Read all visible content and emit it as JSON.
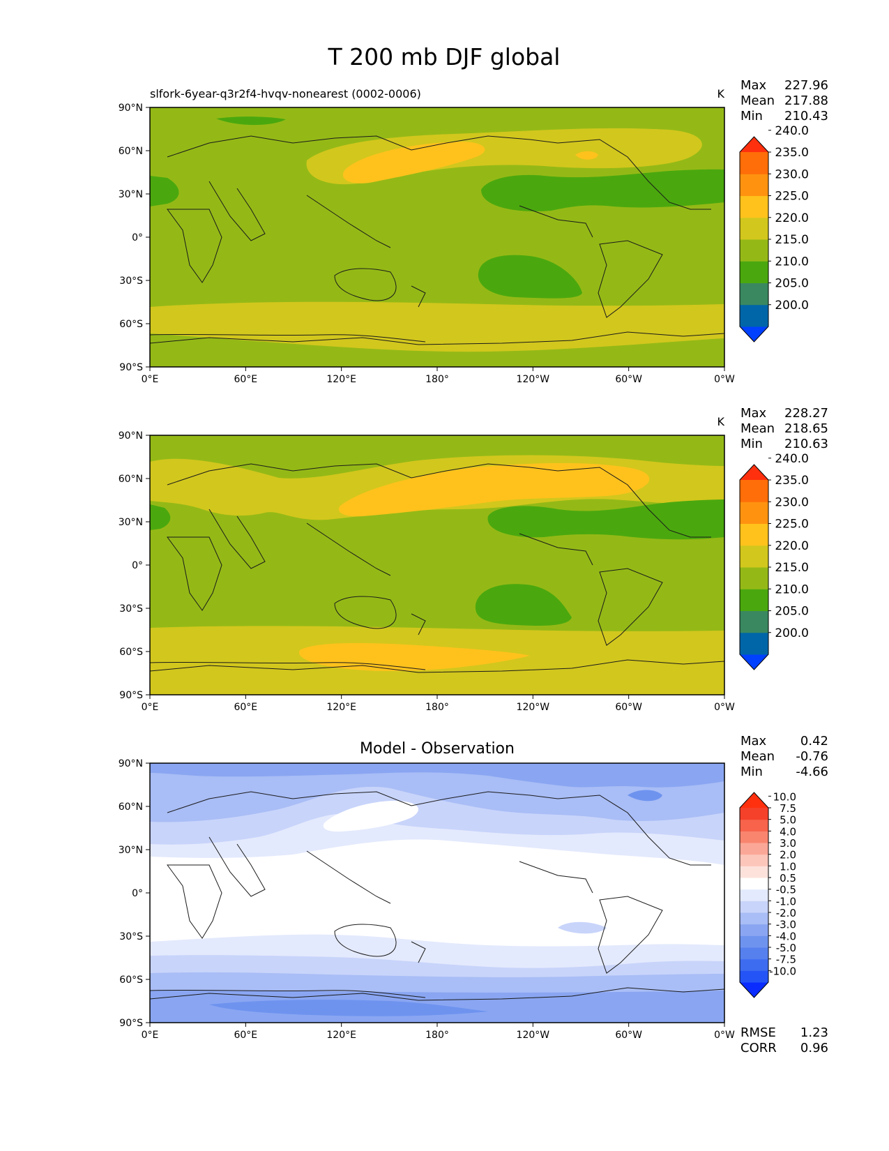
{
  "figure_title": "T 200 mb DJF global",
  "chart_data": [
    {
      "type": "contour_map",
      "title": "slfork-6year-q3r2f4-hvqv-nonearest (0002-0006)",
      "units": "K",
      "stats": {
        "Max": "227.96",
        "Mean": "217.88",
        "Min": "210.43"
      },
      "stat_labels": [
        "Max",
        "Mean",
        "Min"
      ],
      "xticks": [
        "0°E",
        "60°E",
        "120°E",
        "180°",
        "120°W",
        "60°W",
        "0°W"
      ],
      "yticks": [
        "90°N",
        "60°N",
        "30°N",
        "0°",
        "30°S",
        "60°S",
        "90°S"
      ],
      "xlim": [
        0,
        360
      ],
      "ylim": [
        -90,
        90
      ],
      "colorbar": {
        "levels": [
          "200.0",
          "205.0",
          "210.0",
          "215.0",
          "220.0",
          "225.0",
          "230.0",
          "235.0",
          "240.0"
        ],
        "colors": [
          "#0040ff",
          "#0066a8",
          "#3a8860",
          "#4aa80e",
          "#94b916",
          "#d2c71d",
          "#ffc21c",
          "#ff9310",
          "#ff6e08",
          "#ff300e"
        ]
      },
      "field_bands": [
        {
          "label": "210-215",
          "color": "#4aa80e"
        },
        {
          "label": "215-220",
          "color": "#94b916"
        },
        {
          "label": "220-225",
          "color": "#d2c71d"
        },
        {
          "label": "225-230",
          "color": "#ffc21c"
        }
      ]
    },
    {
      "type": "contour_map",
      "title": "",
      "units": "K",
      "stats": {
        "Max": "228.27",
        "Mean": "218.65",
        "Min": "210.63"
      },
      "stat_labels": [
        "Max",
        "Mean",
        "Min"
      ],
      "xticks": [
        "0°E",
        "60°E",
        "120°E",
        "180°",
        "120°W",
        "60°W",
        "0°W"
      ],
      "yticks": [
        "90°N",
        "60°N",
        "30°N",
        "0°",
        "30°S",
        "60°S",
        "90°S"
      ],
      "xlim": [
        0,
        360
      ],
      "ylim": [
        -90,
        90
      ],
      "colorbar": {
        "levels": [
          "200.0",
          "205.0",
          "210.0",
          "215.0",
          "220.0",
          "225.0",
          "230.0",
          "235.0",
          "240.0"
        ],
        "colors": [
          "#0040ff",
          "#0066a8",
          "#3a8860",
          "#4aa80e",
          "#94b916",
          "#d2c71d",
          "#ffc21c",
          "#ff9310",
          "#ff6e08",
          "#ff300e"
        ]
      },
      "field_bands": [
        {
          "label": "210-215",
          "color": "#4aa80e"
        },
        {
          "label": "215-220",
          "color": "#94b916"
        },
        {
          "label": "220-225",
          "color": "#d2c71d"
        },
        {
          "label": "225-230",
          "color": "#ffc21c"
        }
      ]
    },
    {
      "type": "contour_map",
      "title": "Model - Observation",
      "units": "",
      "stats": {
        "Max": "0.42",
        "Mean": "-0.76",
        "Min": "-4.66"
      },
      "stat_labels": [
        "Max",
        "Mean",
        "Min"
      ],
      "xticks": [
        "0°E",
        "60°E",
        "120°E",
        "180°",
        "120°W",
        "60°W",
        "0°W"
      ],
      "yticks": [
        "90°N",
        "60°N",
        "30°N",
        "0°",
        "30°S",
        "60°S",
        "90°S"
      ],
      "xlim": [
        0,
        360
      ],
      "ylim": [
        -90,
        90
      ],
      "colorbar": {
        "levels": [
          "-10.0",
          "-7.5",
          "-5.0",
          "-4.0",
          "-3.0",
          "-2.0",
          "-1.0",
          "-0.5",
          "0.5",
          "1.0",
          "2.0",
          "3.0",
          "4.0",
          "5.0",
          "7.5",
          "10.0"
        ],
        "colors": [
          "#0a2cff",
          "#2454f5",
          "#3e6cf0",
          "#5580ee",
          "#6e93ef",
          "#8aa6f2",
          "#a9bdf6",
          "#c8d4fa",
          "#e4eafd",
          "#ffffff",
          "#fde2dc",
          "#fcc6bb",
          "#fba797",
          "#f9856f",
          "#f7634b",
          "#f5402a",
          "#ff300e"
        ]
      },
      "field_bands": [
        {
          "label": "0.5 to -0.5",
          "color": "#ffffff"
        },
        {
          "label": "-0.5 to -1.0",
          "color": "#e4eafd"
        },
        {
          "label": "-1.0 to -2.0",
          "color": "#c8d4fa"
        },
        {
          "label": "-2.0 to -3.0",
          "color": "#a9bdf6"
        },
        {
          "label": "-3.0 to -4.0",
          "color": "#8aa6f2"
        },
        {
          "label": "-4.0 to -5.0",
          "color": "#6e93ef"
        }
      ],
      "extra_stats": {
        "RMSE": "1.23",
        "CORR": "0.96"
      },
      "extra_labels": [
        "RMSE",
        "CORR"
      ]
    }
  ]
}
